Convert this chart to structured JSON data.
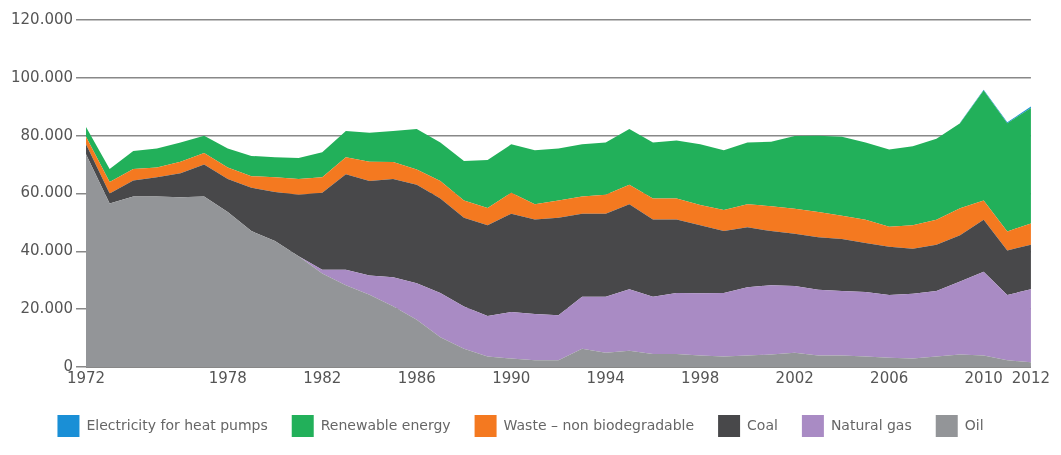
{
  "chart_data": {
    "type": "area",
    "stacked": true,
    "x": [
      1972,
      1973,
      1974,
      1975,
      1976,
      1977,
      1978,
      1979,
      1980,
      1981,
      1982,
      1983,
      1984,
      1985,
      1986,
      1987,
      1988,
      1989,
      1990,
      1991,
      1992,
      1993,
      1994,
      1995,
      1996,
      1997,
      1998,
      1999,
      2000,
      2001,
      2002,
      2003,
      2004,
      2005,
      2006,
      2007,
      2008,
      2009,
      2010,
      2011,
      2012
    ],
    "xlim": [
      1972,
      2012
    ],
    "xticks": [
      1972,
      1978,
      1982,
      1986,
      1990,
      1994,
      1998,
      2002,
      2006,
      2010,
      2012
    ],
    "ylim": [
      0,
      120000
    ],
    "yticks": [
      0,
      {
        "value": 20000,
        "label": "20.000"
      },
      {
        "value": 40000,
        "label": "40.000"
      },
      {
        "value": 60000,
        "label": "60.000"
      },
      {
        "value": 80000,
        "label": "80.000"
      },
      {
        "value": 100000,
        "label": "100.000"
      },
      {
        "value": 120000,
        "label": "120.000"
      }
    ],
    "grid": "y",
    "legend": "bottom",
    "series": [
      {
        "name": "Oil",
        "color": "#939598",
        "values": [
          73600,
          56500,
          59000,
          59000,
          58700,
          59000,
          53600,
          47000,
          43600,
          38300,
          32300,
          28300,
          25000,
          21000,
          16300,
          10300,
          6300,
          3600,
          2900,
          2300,
          2300,
          6300,
          4900,
          5600,
          4500,
          4500,
          4000,
          3600,
          4000,
          4300,
          4900,
          4000,
          4000,
          3600,
          3200,
          2900,
          3600,
          4300,
          4000,
          2300,
          1600
        ]
      },
      {
        "name": "Natural gas",
        "color": "#a98bc4",
        "values": [
          0,
          0,
          0,
          0,
          0,
          0,
          0,
          0,
          0,
          0,
          1300,
          5300,
          6600,
          10000,
          12700,
          15300,
          14600,
          14000,
          16100,
          16000,
          15600,
          18000,
          19400,
          21300,
          19800,
          21100,
          21500,
          22000,
          23600,
          24000,
          23100,
          22700,
          22300,
          22300,
          21700,
          22400,
          22700,
          25300,
          28900,
          22600,
          25300
        ]
      },
      {
        "name": "Coal",
        "color": "#48484a",
        "values": [
          3400,
          3500,
          5500,
          6600,
          8300,
          11000,
          11400,
          15000,
          16900,
          21300,
          26700,
          33100,
          32700,
          34000,
          34000,
          32700,
          30700,
          31400,
          34000,
          32700,
          33700,
          28700,
          28700,
          29400,
          26700,
          25400,
          23500,
          21400,
          20700,
          18700,
          18100,
          18200,
          18000,
          17000,
          16700,
          15600,
          16000,
          16000,
          18000,
          15400,
          15400
        ]
      },
      {
        "name": "Waste – non biodegradable",
        "color": "#f47920",
        "values": [
          2600,
          4000,
          4000,
          3400,
          4000,
          4000,
          4000,
          4000,
          5100,
          5400,
          5300,
          5800,
          6700,
          5900,
          5300,
          6000,
          6000,
          6000,
          7300,
          5300,
          6000,
          6000,
          6600,
          6700,
          7300,
          7300,
          7000,
          7300,
          8000,
          8600,
          8600,
          8700,
          8000,
          8000,
          6900,
          8100,
          8600,
          9300,
          6700,
          6600,
          7300
        ]
      },
      {
        "name": "Renewable energy",
        "color": "#22b05a",
        "values": [
          3400,
          4500,
          6200,
          6600,
          6600,
          6000,
          6600,
          7000,
          6900,
          7300,
          8700,
          9100,
          10000,
          10700,
          14000,
          13300,
          13600,
          16600,
          16700,
          18700,
          18000,
          18000,
          18000,
          19300,
          19300,
          20000,
          21000,
          20700,
          21300,
          22300,
          25200,
          26400,
          27300,
          26700,
          26700,
          27300,
          28000,
          29400,
          38000,
          37400,
          40000
        ]
      },
      {
        "name": "Electricity for heat pumps",
        "color": "#1a8fd6",
        "values": [
          null,
          null,
          null,
          null,
          null,
          null,
          null,
          null,
          null,
          null,
          null,
          null,
          null,
          null,
          null,
          null,
          null,
          null,
          null,
          null,
          null,
          null,
          null,
          null,
          null,
          null,
          null,
          null,
          null,
          null,
          null,
          null,
          null,
          null,
          null,
          null,
          null,
          200,
          300,
          300,
          500
        ]
      }
    ]
  }
}
